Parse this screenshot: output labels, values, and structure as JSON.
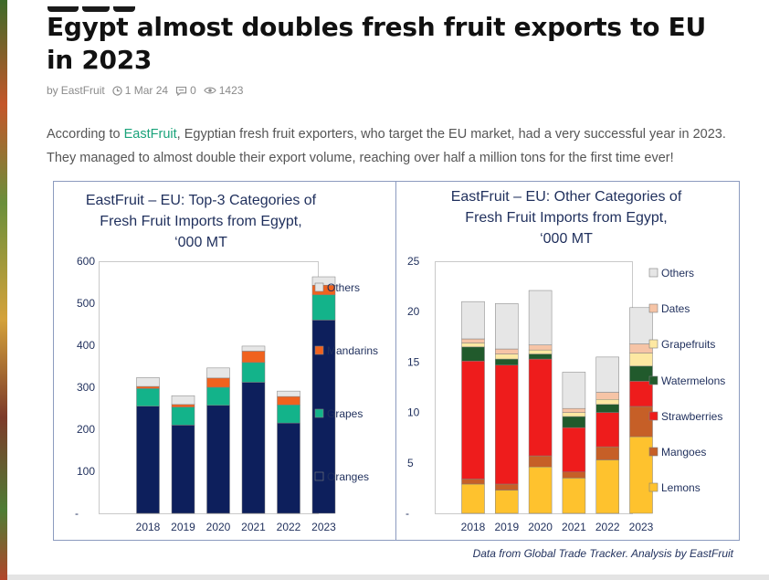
{
  "article": {
    "title": "Egypt almost doubles fresh fruit exports to EU in 2023",
    "by_prefix": "by",
    "author": "EastFruit",
    "date": "1 Mar 24",
    "comments": "0",
    "views": "1423",
    "intro_before": "According to ",
    "intro_link": "EastFruit",
    "intro_after": ", Egyptian fresh fruit exporters, who target the EU market, had a very successful year in 2023. They managed to almost double their export volume, reaching over half a million tons for the first time ever!",
    "icons": [
      "clock-icon",
      "comment-icon",
      "eye-icon"
    ]
  },
  "figure": {
    "source_note": "Data from Global Trade Tracker. Analysis by EastFruit"
  },
  "chart_data": [
    {
      "type": "bar",
      "stacked": true,
      "title": [
        "EastFruit – EU: Top-3 Categories of",
        "Fresh Fruit Imports from Egypt,",
        "‘000 MT"
      ],
      "categories": [
        "2018",
        "2019",
        "2020",
        "2021",
        "2022",
        "2023"
      ],
      "ylim": [
        0,
        600
      ],
      "yticks": [
        "-",
        "100",
        "200",
        "300",
        "400",
        "500",
        "600"
      ],
      "grid": false,
      "legend_position": "right",
      "series": [
        {
          "name": "Oranges",
          "color": "#0d1f5c",
          "values": [
            255,
            210,
            257,
            312,
            215,
            460
          ]
        },
        {
          "name": "Grapes",
          "color": "#13b38a",
          "values": [
            42,
            43,
            43,
            47,
            43,
            60
          ]
        },
        {
          "name": "Mandarins",
          "color": "#f0621e",
          "values": [
            5,
            6,
            22,
            27,
            20,
            23
          ]
        },
        {
          "name": "Others",
          "color": "#e6e6e6",
          "values": [
            21,
            21,
            24,
            12,
            13,
            20
          ]
        }
      ]
    },
    {
      "type": "bar",
      "stacked": true,
      "title": [
        "EastFruit – EU: Other Categories of",
        "Fresh Fruit Imports from Egypt,",
        "‘000 MT"
      ],
      "categories": [
        "2018",
        "2019",
        "2020",
        "2021",
        "2022",
        "2023"
      ],
      "ylim": [
        0,
        25
      ],
      "yticks": [
        "-",
        "5",
        "10",
        "15",
        "20",
        "25"
      ],
      "grid": false,
      "legend_position": "right",
      "series": [
        {
          "name": "Lemons",
          "color": "#fec22e",
          "values": [
            2.9,
            2.3,
            4.6,
            3.5,
            5.3,
            7.6
          ]
        },
        {
          "name": "Mangoes",
          "color": "#c65f27",
          "values": [
            0.5,
            0.6,
            1.1,
            0.6,
            1.3,
            3.0
          ]
        },
        {
          "name": "Strawberries",
          "color": "#ee1c1c",
          "values": [
            11.7,
            11.8,
            9.6,
            4.4,
            3.4,
            2.5
          ]
        },
        {
          "name": "Watermelons",
          "color": "#215a2c",
          "values": [
            1.4,
            0.6,
            0.5,
            1.1,
            0.8,
            1.5
          ]
        },
        {
          "name": "Grapefruits",
          "color": "#fde8a2",
          "values": [
            0.4,
            0.5,
            0.4,
            0.4,
            0.5,
            1.3
          ]
        },
        {
          "name": "Dates",
          "color": "#f6c4a6",
          "values": [
            0.4,
            0.5,
            0.5,
            0.4,
            0.7,
            0.9
          ]
        },
        {
          "name": "Others",
          "color": "#e6e6e6",
          "values": [
            3.7,
            4.5,
            5.4,
            3.6,
            3.5,
            3.6
          ]
        }
      ]
    }
  ]
}
